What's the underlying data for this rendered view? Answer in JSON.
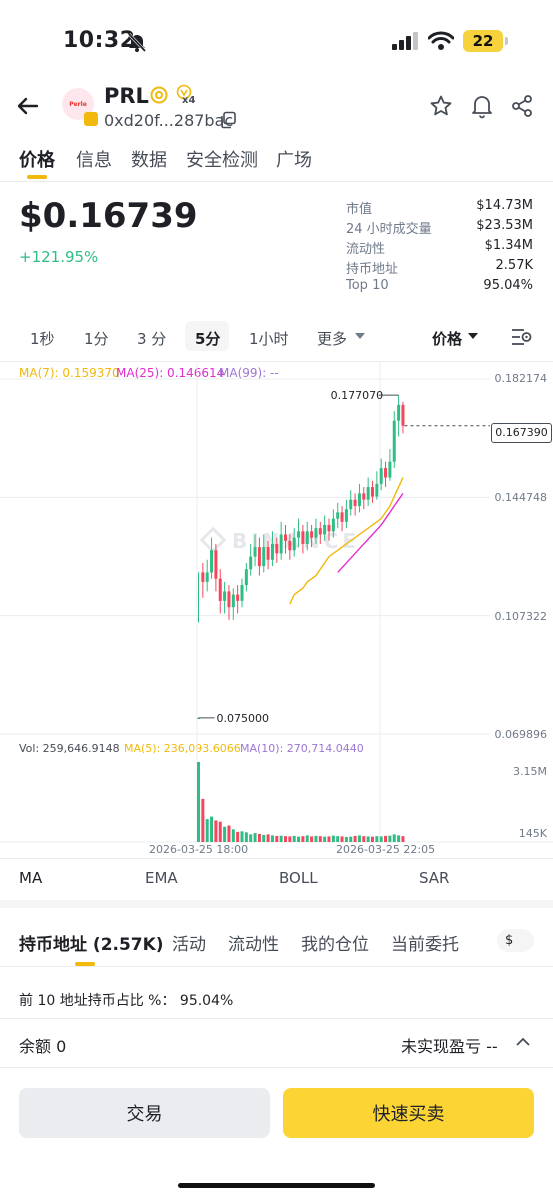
{
  "status_bar": {
    "time": "10:32",
    "battery": "22"
  },
  "token": {
    "name": "PRL",
    "logo_text": "Perle",
    "address": "0xd20f...287bac",
    "badge_x": "x4"
  },
  "tabs": [
    "价格",
    "信息",
    "数据",
    "安全检测",
    "广场"
  ],
  "price": "$0.16739",
  "change": "+121.95%",
  "stats": [
    {
      "label": "市值",
      "value": "$14.73M"
    },
    {
      "label": "24 小时成交量",
      "value": "$23.53M"
    },
    {
      "label": "流动性",
      "value": "$1.34M"
    },
    {
      "label": "持币地址",
      "value": "2.57K"
    },
    {
      "label": "Top 10",
      "value": "95.04%"
    }
  ],
  "timeframes": [
    "1秒",
    "1分",
    "3 分",
    "5分",
    "1小时",
    "更多"
  ],
  "active_timeframe": "5分",
  "price_dropdown": "价格",
  "ma_legend": {
    "ma7": "MA(7): 0.159370",
    "ma25": "MA(25): 0.146614",
    "ma99": "MA(99): --"
  },
  "watermark": "BINANCE",
  "colors": {
    "up": "#2ebd85",
    "down": "#f6465d",
    "ma7": "#f0b90b",
    "ma25": "#e22fcf",
    "ma99": "#9d76d6",
    "accent": "#fcd535"
  },
  "chart_data": {
    "type": "candlestick",
    "y_ticks": [
      "0.182174",
      "0.144748",
      "0.107322",
      "0.069896"
    ],
    "ylim": [
      0.069896,
      0.182174
    ],
    "high_label": "0.177070",
    "low_label": "0.075000",
    "current_price": "0.167390",
    "x_ticks": [
      "2026-03-25 18:00",
      "2026-03-25 22:05"
    ],
    "candles": [
      [
        0.075,
        0.075,
        0.121,
        0.1052
      ],
      [
        0.121,
        0.118,
        0.124,
        0.113
      ],
      [
        0.118,
        0.121,
        0.125,
        0.115
      ],
      [
        0.121,
        0.128,
        0.132,
        0.119
      ],
      [
        0.128,
        0.119,
        0.13,
        0.115
      ],
      [
        0.119,
        0.112,
        0.122,
        0.108
      ],
      [
        0.112,
        0.115,
        0.118,
        0.108
      ],
      [
        0.115,
        0.11,
        0.117,
        0.106
      ],
      [
        0.11,
        0.114,
        0.116,
        0.106
      ],
      [
        0.114,
        0.112,
        0.117,
        0.108
      ],
      [
        0.112,
        0.117,
        0.119,
        0.11
      ],
      [
        0.117,
        0.122,
        0.124,
        0.115
      ],
      [
        0.122,
        0.126,
        0.13,
        0.12
      ],
      [
        0.126,
        0.129,
        0.133,
        0.123
      ],
      [
        0.129,
        0.123,
        0.132,
        0.12
      ],
      [
        0.123,
        0.129,
        0.133,
        0.121
      ],
      [
        0.129,
        0.125,
        0.131,
        0.122
      ],
      [
        0.125,
        0.13,
        0.134,
        0.123
      ],
      [
        0.13,
        0.127,
        0.132,
        0.124
      ],
      [
        0.127,
        0.133,
        0.137,
        0.125
      ],
      [
        0.133,
        0.131,
        0.136,
        0.127
      ],
      [
        0.131,
        0.128,
        0.133,
        0.125
      ],
      [
        0.128,
        0.132,
        0.135,
        0.126
      ],
      [
        0.132,
        0.134,
        0.138,
        0.129
      ],
      [
        0.134,
        0.13,
        0.136,
        0.127
      ],
      [
        0.13,
        0.134,
        0.137,
        0.128
      ],
      [
        0.134,
        0.132,
        0.136,
        0.129
      ],
      [
        0.132,
        0.135,
        0.138,
        0.13
      ],
      [
        0.135,
        0.133,
        0.137,
        0.13
      ],
      [
        0.133,
        0.136,
        0.139,
        0.131
      ],
      [
        0.136,
        0.134,
        0.138,
        0.131
      ],
      [
        0.134,
        0.138,
        0.141,
        0.132
      ],
      [
        0.138,
        0.14,
        0.143,
        0.135
      ],
      [
        0.14,
        0.137,
        0.142,
        0.134
      ],
      [
        0.137,
        0.141,
        0.144,
        0.135
      ],
      [
        0.141,
        0.144,
        0.147,
        0.139
      ],
      [
        0.144,
        0.142,
        0.146,
        0.139
      ],
      [
        0.142,
        0.146,
        0.149,
        0.14
      ],
      [
        0.146,
        0.144,
        0.148,
        0.141
      ],
      [
        0.144,
        0.148,
        0.151,
        0.142
      ],
      [
        0.148,
        0.145,
        0.15,
        0.143
      ],
      [
        0.145,
        0.149,
        0.153,
        0.144
      ],
      [
        0.149,
        0.154,
        0.157,
        0.147
      ],
      [
        0.154,
        0.151,
        0.156,
        0.148
      ],
      [
        0.151,
        0.156,
        0.16,
        0.15
      ],
      [
        0.156,
        0.169,
        0.172,
        0.154
      ],
      [
        0.169,
        0.174,
        0.1771,
        0.164
      ],
      [
        0.174,
        0.1674,
        0.175,
        0.165
      ]
    ],
    "ma7": [
      0.111,
      0.114,
      0.115,
      0.116,
      0.118,
      0.119,
      0.12,
      0.122,
      0.124,
      0.126,
      0.127,
      0.128,
      0.129,
      0.13,
      0.131,
      0.132,
      0.133,
      0.134,
      0.135,
      0.136,
      0.137,
      0.138,
      0.14,
      0.142,
      0.145,
      0.148,
      0.151
    ],
    "ma25": [
      0.121,
      0.1225,
      0.124,
      0.1255,
      0.127,
      0.1285,
      0.13,
      0.1315,
      0.133,
      0.1345,
      0.136,
      0.138,
      0.14,
      0.142,
      0.144,
      0.146
    ],
    "volume": {
      "label": "Vol: 259,646.9148",
      "ma5": "MA(5): 236,093.6066",
      "ma10": "MA(10): 270,714.0440",
      "ticks": [
        "3.15M",
        "145K"
      ],
      "values": [
        3150000,
        1700000,
        900000,
        1000000,
        850000,
        800000,
        600000,
        650000,
        500000,
        400000,
        420000,
        380000,
        300000,
        350000,
        320000,
        280000,
        300000,
        260000,
        240000,
        250000,
        230000,
        220000,
        240000,
        210000,
        230000,
        260000,
        220000,
        240000,
        230000,
        210000,
        220000,
        250000,
        230000,
        220000,
        200000,
        210000,
        240000,
        260000,
        230000,
        220000,
        210000,
        230000,
        220000,
        240000,
        250000,
        300000,
        260000,
        230000
      ]
    }
  },
  "indicator_tabs": [
    "MA",
    "EMA",
    "BOLL",
    "SAR"
  ],
  "bottom_tabs": [
    "持币地址 (2.57K)",
    "活动",
    "流动性",
    "我的仓位",
    "当前委托"
  ],
  "currency_pill": "$",
  "top10_line": "前 10 地址持币占比 %： 95.04%",
  "balance": {
    "label": "余额 0",
    "pnl": "未实现盈亏 --"
  },
  "buttons": {
    "trade": "交易",
    "quick": "快速买卖"
  }
}
